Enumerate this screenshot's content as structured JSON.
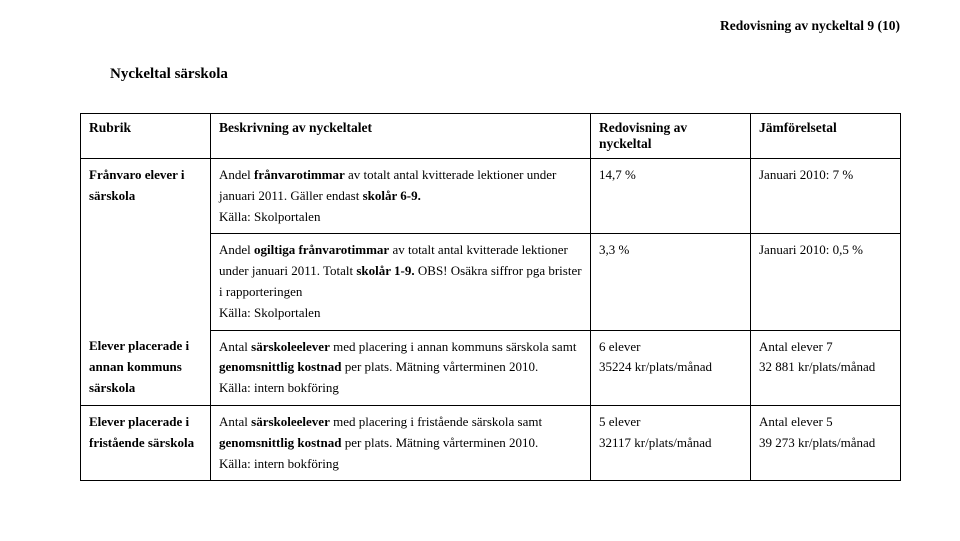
{
  "header": {
    "text": "Redovisning av nyckeltal 9 (10)"
  },
  "section_title": "Nyckeltal särskola",
  "columns": {
    "c1": "Rubrik",
    "c2": "Beskrivning av nyckeltalet",
    "c3": "Redovisning av nyckeltal",
    "c4": "Jämförelsetal"
  },
  "rows": {
    "r1": {
      "rubrik": "Frånvaro elever i särskola",
      "desc_pre": "Andel ",
      "desc_b1": "frånvarotimmar",
      "desc_mid1": " av totalt antal kvitterade lektioner under januari 2011. Gäller endast ",
      "desc_b2": "skolår 6-9.",
      "src": "Källa: Skolportalen",
      "redov": "14,7 %",
      "jmf": "Januari 2010: 7 %"
    },
    "r2": {
      "desc_pre": "Andel ",
      "desc_b1": "ogiltiga frånvarotimmar",
      "desc_mid1": " av totalt antal kvitterade lektioner under januari 2011. Totalt ",
      "desc_b2": "skolår 1-9.",
      "desc_post": " OBS! Osäkra siffror pga brister i rapporteringen",
      "src": "Källa: Skolportalen",
      "redov": "3,3 %",
      "jmf": "Januari 2010: 0,5 %"
    },
    "r3": {
      "rubrik": "Elever placerade i annan kommuns särskola",
      "desc_pre": "Antal ",
      "desc_b1": "särskoleelever",
      "desc_mid1": " med placering i annan kommuns särskola samt ",
      "desc_b2": "genomsnittlig kostnad",
      "desc_post": " per plats. Mätning vårterminen 2010.",
      "src": "Källa: intern bokföring",
      "redov_l1": "6 elever",
      "redov_l2": "35224 kr/plats/månad",
      "jmf_l1": "Antal elever 7",
      "jmf_l2": "32 881 kr/plats/månad"
    },
    "r4": {
      "rubrik": "Elever placerade i fristående särskola",
      "desc_pre": "Antal ",
      "desc_b1": "särskoleelever",
      "desc_mid1": " med placering i fristående särskola samt ",
      "desc_b2": "genomsnittlig kostnad",
      "desc_post": " per plats. Mätning vårterminen 2010.",
      "src": "Källa: intern bokföring",
      "redov_l1": "5 elever",
      "redov_l2": "32117 kr/plats/månad",
      "jmf_l1": "Antal elever 5",
      "jmf_l2": "39 273 kr/plats/månad"
    }
  }
}
